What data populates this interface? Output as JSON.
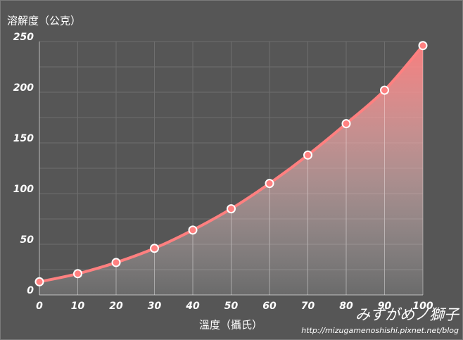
{
  "chart_data": {
    "type": "line",
    "y_label": "溶解度（公克）",
    "x_label": "溫度（攝氏）",
    "x": [
      0,
      10,
      20,
      30,
      40,
      50,
      60,
      70,
      80,
      90,
      100
    ],
    "series": [
      {
        "color": "#ff8080",
        "values": [
          13,
          21,
          32,
          46,
          64,
          85,
          110,
          138,
          169,
          202,
          246
        ]
      }
    ],
    "xlim": [
      0,
      100
    ],
    "xticks": [
      0,
      10,
      20,
      30,
      40,
      50,
      60,
      70,
      80,
      90,
      100
    ],
    "ylim": [
      0,
      250
    ],
    "yticks": [
      0,
      50,
      100,
      150,
      200,
      250
    ],
    "y_minor_ticks": [
      25,
      75,
      125,
      175,
      225
    ],
    "grid": true,
    "area_fill": true,
    "watermark": "みずがめノ獅子",
    "watermark_url": "http://mizugamenoshishi.pixnet.net/blog"
  }
}
